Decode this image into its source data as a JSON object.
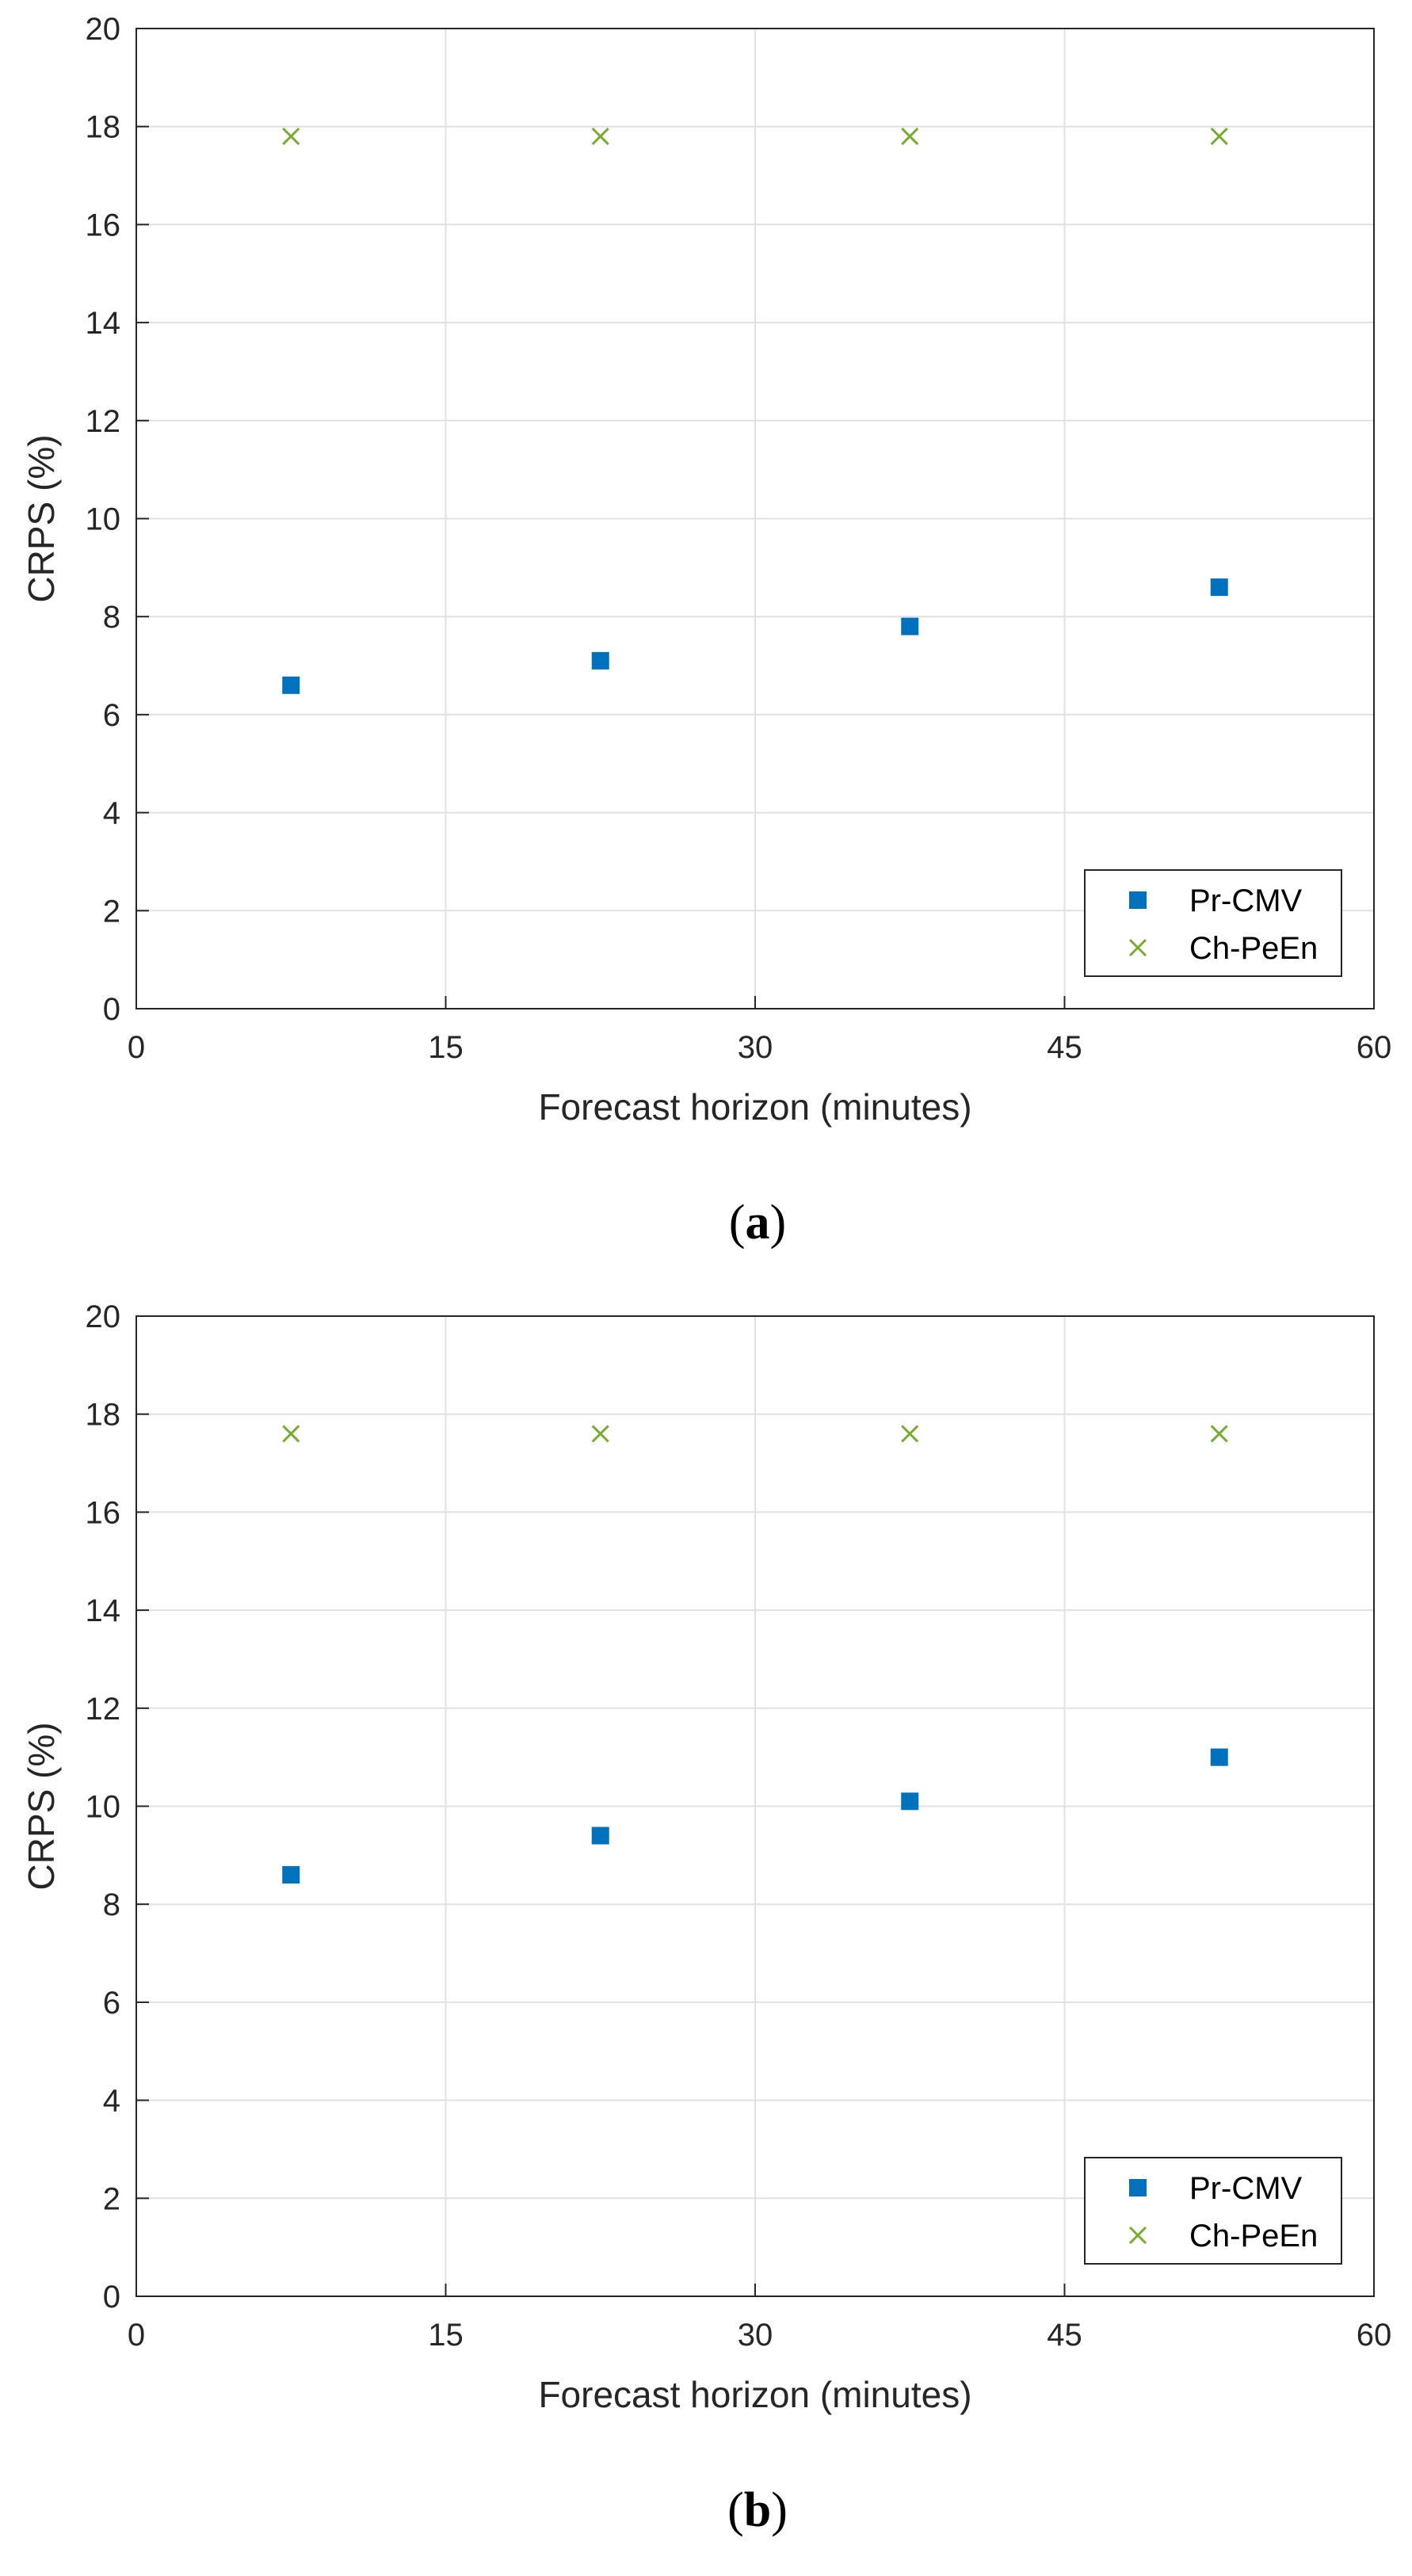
{
  "chart_data": [
    {
      "type": "scatter",
      "panel_label": "a",
      "xlabel": "Forecast horizon (minutes)",
      "ylabel": "CRPS (%)",
      "xlim": [
        0,
        60
      ],
      "ylim": [
        0,
        20
      ],
      "xticks": [
        0,
        15,
        30,
        45,
        60
      ],
      "yticks": [
        0,
        2,
        4,
        6,
        8,
        10,
        12,
        14,
        16,
        18,
        20
      ],
      "grid": true,
      "legend_position": "bottom-right",
      "series": [
        {
          "name": "Pr-CMV",
          "marker": "square",
          "color": "#0072BD",
          "x": [
            7.5,
            22.5,
            37.5,
            52.5
          ],
          "y": [
            6.6,
            7.1,
            7.8,
            8.6
          ]
        },
        {
          "name": "Ch-PeEn",
          "marker": "x",
          "color": "#77AC30",
          "x": [
            7.5,
            22.5,
            37.5,
            52.5
          ],
          "y": [
            17.8,
            17.8,
            17.8,
            17.8
          ]
        }
      ]
    },
    {
      "type": "scatter",
      "panel_label": "b",
      "xlabel": "Forecast horizon (minutes)",
      "ylabel": "CRPS (%)",
      "xlim": [
        0,
        60
      ],
      "ylim": [
        0,
        20
      ],
      "xticks": [
        0,
        15,
        30,
        45,
        60
      ],
      "yticks": [
        0,
        2,
        4,
        6,
        8,
        10,
        12,
        14,
        16,
        18,
        20
      ],
      "grid": true,
      "legend_position": "bottom-right",
      "series": [
        {
          "name": "Pr-CMV",
          "marker": "square",
          "color": "#0072BD",
          "x": [
            7.5,
            22.5,
            37.5,
            52.5
          ],
          "y": [
            8.6,
            9.4,
            10.1,
            11.0
          ]
        },
        {
          "name": "Ch-PeEn",
          "marker": "x",
          "color": "#77AC30",
          "x": [
            7.5,
            22.5,
            37.5,
            52.5
          ],
          "y": [
            17.6,
            17.6,
            17.6,
            17.6
          ]
        }
      ]
    }
  ]
}
